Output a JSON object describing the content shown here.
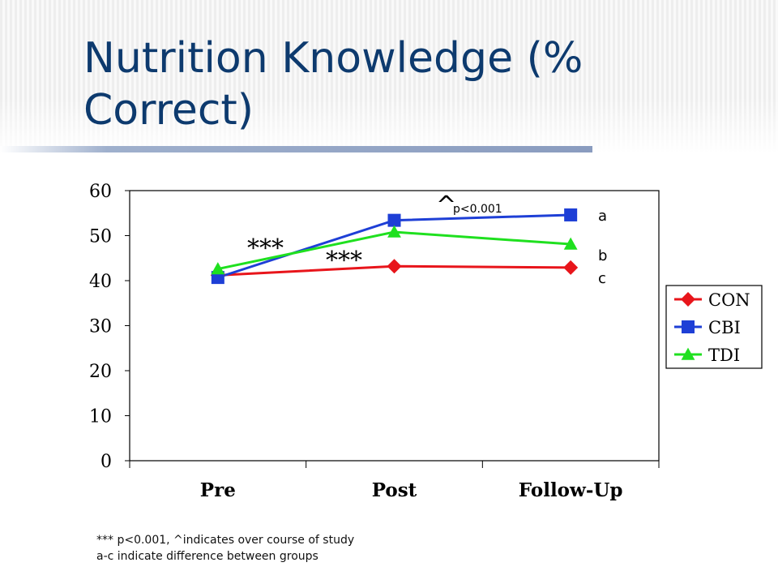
{
  "slide": {
    "title": "Nutrition Knowledge (% Correct)",
    "footnote_lines": [
      "*** p<0.001, ^indicates over course of study",
      "a-c indicate difference between groups"
    ]
  },
  "chart_data": {
    "type": "line",
    "title": "",
    "xlabel": "",
    "ylabel": "",
    "categories": [
      "Pre",
      "Post",
      "Follow-Up"
    ],
    "ylim": [
      0,
      60
    ],
    "yticks": [
      "0",
      "10",
      "20",
      "30",
      "40",
      "50",
      "60"
    ],
    "grid": true,
    "legend_position": "right",
    "series": [
      {
        "name": "CON",
        "values": [
          41.2,
          43.2,
          42.9
        ],
        "color": "#e8151b",
        "marker": "diamond"
      },
      {
        "name": "CBI",
        "values": [
          40.7,
          53.4,
          54.6
        ],
        "color": "#1e3fd6",
        "marker": "square"
      },
      {
        "name": "TDI",
        "values": [
          42.6,
          50.8,
          48.1
        ],
        "color": "#1fe01f",
        "marker": "triangle"
      }
    ],
    "annotations": [
      {
        "text": "***",
        "role": "stars_pre_post"
      },
      {
        "text": "***",
        "role": "stars_post_followup"
      },
      {
        "text": "^",
        "role": "caret"
      },
      {
        "text": "p<0.001",
        "role": "caret_p"
      },
      {
        "text": "a",
        "role": "group_a"
      },
      {
        "text": "b",
        "role": "group_b"
      },
      {
        "text": "c",
        "role": "group_c"
      }
    ]
  }
}
